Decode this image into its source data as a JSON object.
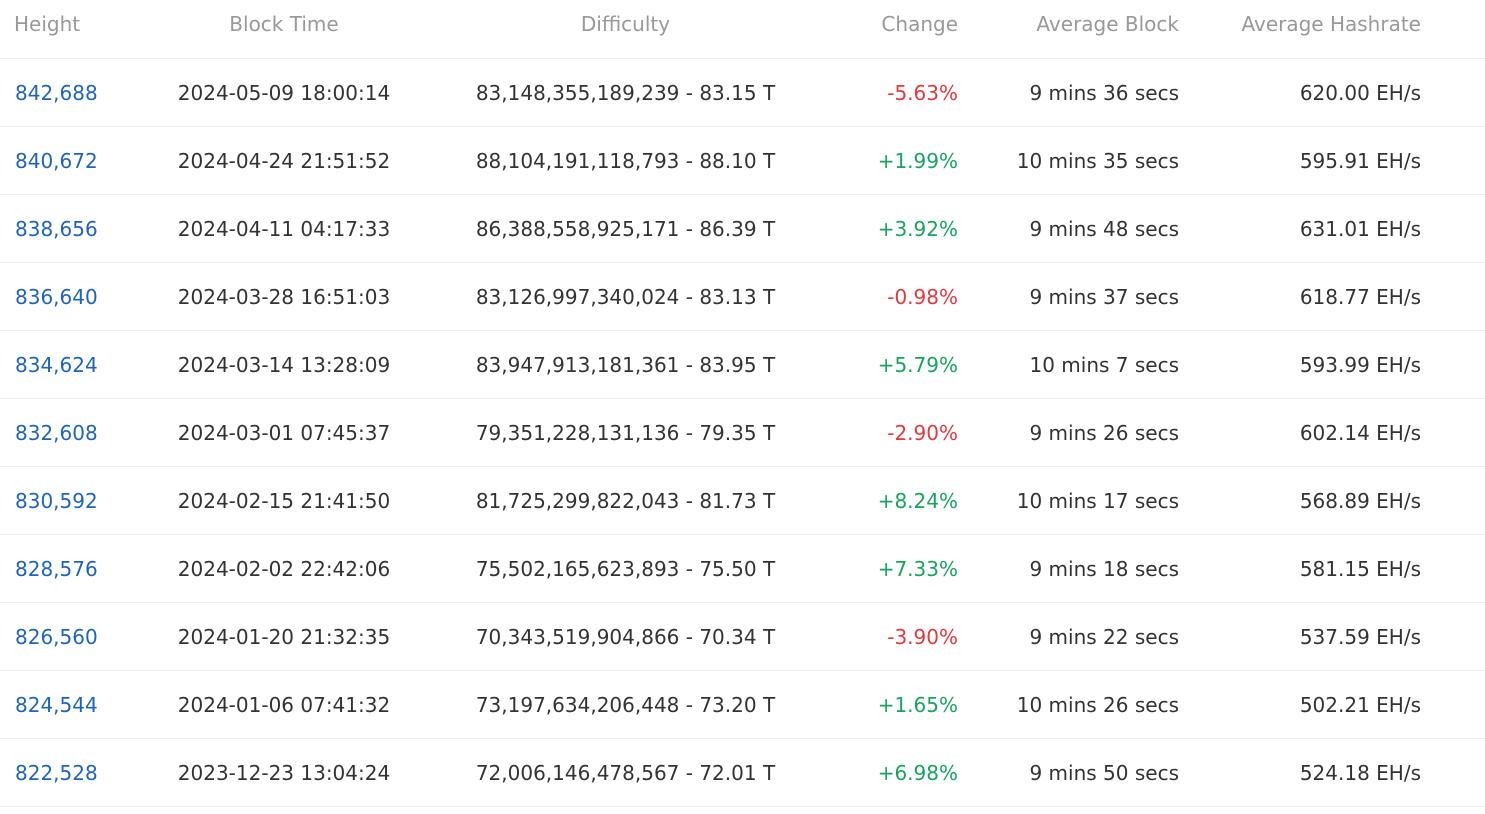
{
  "columns": {
    "height": "Height",
    "block_time": "Block Time",
    "difficulty": "Difficulty",
    "change": "Change",
    "average_block": "Average Block",
    "average_hashrate": "Average Hashrate"
  },
  "colors": {
    "link": "#1f64b8",
    "negative": "#e0393e",
    "positive": "#1aa260",
    "header_text": "#999999",
    "body_text": "#333333"
  },
  "rows": [
    {
      "height": "842,688",
      "block_time": "2024-05-09 18:00:14",
      "difficulty": "83,148,355,189,239 - 83.15 T",
      "change": "-5.63%",
      "average_block": "9 mins 36 secs",
      "average_hashrate": "620.00 EH/s"
    },
    {
      "height": "840,672",
      "block_time": "2024-04-24 21:51:52",
      "difficulty": "88,104,191,118,793 - 88.10 T",
      "change": "+1.99%",
      "average_block": "10 mins 35 secs",
      "average_hashrate": "595.91 EH/s"
    },
    {
      "height": "838,656",
      "block_time": "2024-04-11 04:17:33",
      "difficulty": "86,388,558,925,171 - 86.39 T",
      "change": "+3.92%",
      "average_block": "9 mins 48 secs",
      "average_hashrate": "631.01 EH/s"
    },
    {
      "height": "836,640",
      "block_time": "2024-03-28 16:51:03",
      "difficulty": "83,126,997,340,024 - 83.13 T",
      "change": "-0.98%",
      "average_block": "9 mins 37 secs",
      "average_hashrate": "618.77 EH/s"
    },
    {
      "height": "834,624",
      "block_time": "2024-03-14 13:28:09",
      "difficulty": "83,947,913,181,361 - 83.95 T",
      "change": "+5.79%",
      "average_block": "10 mins 7 secs",
      "average_hashrate": "593.99 EH/s"
    },
    {
      "height": "832,608",
      "block_time": "2024-03-01 07:45:37",
      "difficulty": "79,351,228,131,136 - 79.35 T",
      "change": "-2.90%",
      "average_block": "9 mins 26 secs",
      "average_hashrate": "602.14 EH/s"
    },
    {
      "height": "830,592",
      "block_time": "2024-02-15 21:41:50",
      "difficulty": "81,725,299,822,043 - 81.73 T",
      "change": "+8.24%",
      "average_block": "10 mins 17 secs",
      "average_hashrate": "568.89 EH/s"
    },
    {
      "height": "828,576",
      "block_time": "2024-02-02 22:42:06",
      "difficulty": "75,502,165,623,893 - 75.50 T",
      "change": "+7.33%",
      "average_block": "9 mins 18 secs",
      "average_hashrate": "581.15 EH/s"
    },
    {
      "height": "826,560",
      "block_time": "2024-01-20 21:32:35",
      "difficulty": "70,343,519,904,866 - 70.34 T",
      "change": "-3.90%",
      "average_block": "9 mins 22 secs",
      "average_hashrate": "537.59 EH/s"
    },
    {
      "height": "824,544",
      "block_time": "2024-01-06 07:41:32",
      "difficulty": "73,197,634,206,448 - 73.20 T",
      "change": "+1.65%",
      "average_block": "10 mins 26 secs",
      "average_hashrate": "502.21 EH/s"
    },
    {
      "height": "822,528",
      "block_time": "2023-12-23 13:04:24",
      "difficulty": "72,006,146,478,567 - 72.01 T",
      "change": "+6.98%",
      "average_block": "9 mins 50 secs",
      "average_hashrate": "524.18 EH/s"
    }
  ]
}
